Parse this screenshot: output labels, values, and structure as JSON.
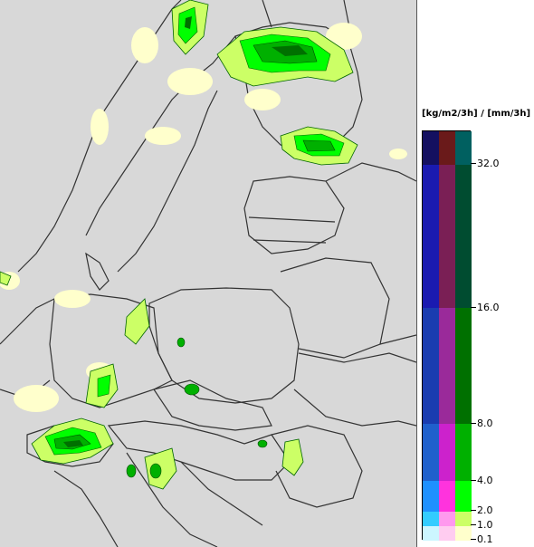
{
  "legend": {
    "unit_label": "[kg/m2/3h] / [mm/3h]",
    "ticks": [
      "32.0",
      "16.0",
      "8.0",
      "4.0",
      "2.0",
      "1.0",
      "0.1"
    ],
    "bands": [
      {
        "from": "0.1",
        "to": "1.0",
        "colors": [
          "#ccf6ff",
          "#ffccf0",
          "#ffffcc"
        ]
      },
      {
        "from": "1.0",
        "to": "2.0",
        "colors": [
          "#33ccff",
          "#ff99ee",
          "#ccff66"
        ]
      },
      {
        "from": "2.0",
        "to": "4.0",
        "colors": [
          "#1e90ff",
          "#ff33dd",
          "#00ff00"
        ]
      },
      {
        "from": "4.0",
        "to": "8.0",
        "colors": [
          "#2060cc",
          "#cc22cc",
          "#00b000"
        ]
      },
      {
        "from": "8.0",
        "to": "16.0",
        "colors": [
          "#1a3cb0",
          "#9a2a9a",
          "#007000"
        ]
      },
      {
        "from": "16.0",
        "to": "32.0",
        "colors": [
          "#1a1ab0",
          "#7a1f55",
          "#004c30"
        ]
      },
      {
        "from": "32.0",
        "to": "",
        "colors": [
          "#141060",
          "#6a1a1a",
          "#006060"
        ]
      }
    ]
  },
  "map": {
    "land_color": "#d8d8d8",
    "sea_color": "#d8d8d8",
    "border_color": "#333333",
    "precip_colors": [
      "#ffffcc",
      "#ccff66",
      "#00ff00",
      "#00b000",
      "#007000"
    ]
  }
}
